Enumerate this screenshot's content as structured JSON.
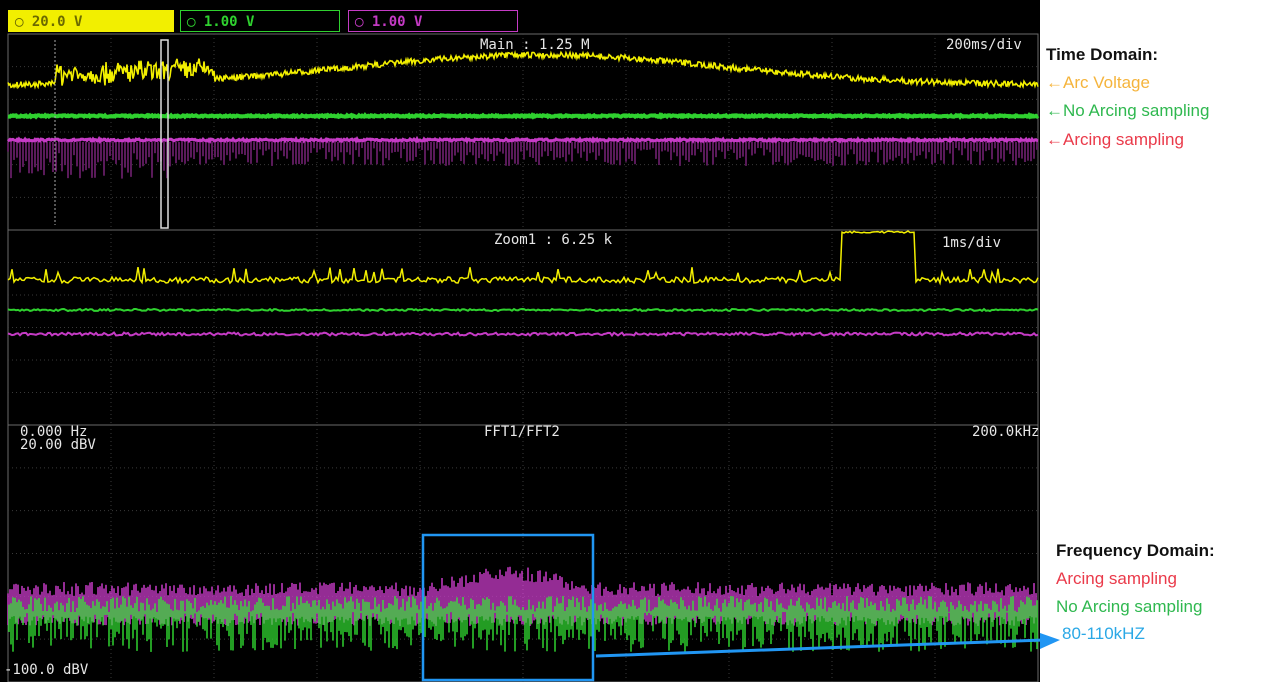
{
  "channels": {
    "ch1": {
      "label": "20.0 V",
      "color": "#f2ef00"
    },
    "ch2": {
      "label": "1.00 V",
      "color": "#2fd12f"
    },
    "ch3": {
      "label": "1.00 V",
      "color": "#c53bc5"
    }
  },
  "main_panel": {
    "title": "Main : 1.25 M",
    "timebase": "200ms/div"
  },
  "zoom_panel": {
    "title": "Zoom1 : 6.25 k",
    "timebase": "1ms/div"
  },
  "fft_panel": {
    "freq_start": "0.000 Hz",
    "level_top": "20.00 dBV",
    "title": "FFT1/FFT2",
    "freq_end": "200.0kHz",
    "level_bottom": "-100.0 dBV"
  },
  "annotations": {
    "time_domain": {
      "heading": "Time Domain:",
      "items": [
        {
          "text": "←Arc Voltage",
          "color": "#f5b43c"
        },
        {
          "text": "←No Arcing sampling",
          "color": "#2fb84f"
        },
        {
          "text": "←Arcing sampling",
          "color": "#ea3a4a"
        }
      ]
    },
    "frequency_domain": {
      "heading": "Frequency Domain:",
      "items": [
        {
          "text": "Arcing sampling",
          "color": "#ea3a4a"
        },
        {
          "text": "No Arcing sampling",
          "color": "#2fb84f"
        },
        {
          "text": "80-110kHZ",
          "color": "#2aa8e6"
        }
      ]
    }
  },
  "colors": {
    "highlight_box": "#2196f3",
    "grid": "#3a3a3a",
    "screen": "#000000"
  }
}
